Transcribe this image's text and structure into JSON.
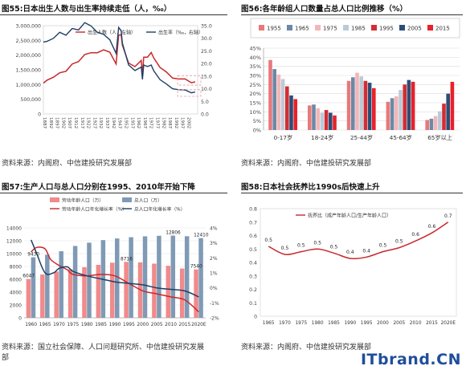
{
  "watermark": {
    "it": "IT",
    "rest": "brand.CN"
  },
  "panels": [
    {
      "title_num": "图55:",
      "title_text": "日本出生人数与出生率持续走低（人，‰）",
      "source": "资料来源：内阁府、中信建投研究发展部",
      "chart_data": {
        "type": "line",
        "legend": [
          "出生人数（人，左轴）",
          "出生率（‰，右轴）"
        ],
        "x_ticks": [
          "1887",
          "1892",
          "1897",
          "1902",
          "1907",
          "1912",
          "1917",
          "1922",
          "1927",
          "1932",
          "1937",
          "1942",
          "1947",
          "1952",
          "1957",
          "1962",
          "1967",
          "1972",
          "1977",
          "1982",
          "1987",
          "1992",
          "1997",
          "2002"
        ],
        "yleft_ticks": [
          "0",
          "500,000",
          "1,000,000",
          "1,500,000",
          "2,000,000",
          "2,500,000",
          "3,000,000"
        ],
        "yleft_lim": [
          0,
          3000000
        ],
        "yright_ticks": [
          "0.0",
          "5.0",
          "10.0",
          "15.0",
          "20.0",
          "25.0",
          "30.0",
          "35.0"
        ],
        "yright_lim": [
          0,
          35
        ],
        "series": [
          {
            "name": "出生人数（人，左轴）",
            "color": "#c8282d",
            "x": [
              1887,
              1890,
              1895,
              1900,
              1905,
              1910,
              1915,
              1920,
              1925,
              1930,
              1935,
              1940,
              1945,
              1947,
              1949,
              1950,
              1955,
              1960,
              1965,
              1966,
              1967,
              1970,
              1973,
              1975,
              1980,
              1985,
              1990,
              1995,
              2000,
              2005,
              2008
            ],
            "values": [
              1050000,
              1150000,
              1250000,
              1400000,
              1450000,
              1700000,
              1780000,
              2020000,
              2080000,
              2080000,
              2180000,
              2100000,
              1700000,
              2680000,
              2690000,
              2340000,
              1730000,
              1610000,
              1820000,
              1360000,
              1930000,
              1930000,
              2090000,
              1900000,
              1580000,
              1430000,
              1220000,
              1190000,
              1190000,
              1060000,
              1090000
            ]
          },
          {
            "name": "出生率（‰，右轴）",
            "color": "#1e3f66",
            "x": [
              1887,
              1890,
              1895,
              1900,
              1905,
              1910,
              1915,
              1920,
              1925,
              1930,
              1935,
              1940,
              1945,
              1947,
              1949,
              1950,
              1955,
              1960,
              1965,
              1966,
              1967,
              1970,
              1973,
              1975,
              1980,
              1985,
              1990,
              1995,
              2000,
              2005,
              2008
            ],
            "values": [
              28.5,
              28.8,
              30.0,
              32.4,
              31.2,
              33.9,
              33.3,
              36.2,
              34.9,
              32.4,
              31.6,
              29.4,
              24.0,
              34.3,
              33.0,
              28.1,
              19.4,
              17.2,
              18.6,
              13.7,
              19.4,
              18.8,
              19.4,
              17.1,
              13.6,
              11.9,
              10.0,
              9.6,
              9.5,
              8.4,
              8.7
            ]
          }
        ]
      }
    },
    {
      "title_num": "图56:",
      "title_text": "各年龄组人口数量占总人口比例推移（%）",
      "source": "资料来源：内阁府、中信建投研究发展部",
      "chart_data": {
        "type": "bar",
        "categories": [
          "0-17岁",
          "18-24岁",
          "25-44岁",
          "45-64岁",
          "65岁以上"
        ],
        "y_ticks": [
          "0%",
          "5%",
          "10%",
          "15%",
          "20%",
          "25%",
          "30%",
          "35%",
          "40%",
          "45%"
        ],
        "ylim": [
          0,
          45
        ],
        "series": [
          {
            "name": "1955",
            "color": "#e7797a",
            "values": [
              38.5,
              13.5,
              27.0,
              15.5,
              5.5
            ]
          },
          {
            "name": "1965",
            "color": "#6c88a8",
            "values": [
              33.5,
              14.0,
              29.0,
              17.5,
              6.2
            ]
          },
          {
            "name": "1975",
            "color": "#f2b7b8",
            "values": [
              30.5,
              12.0,
              31.5,
              18.5,
              7.7
            ]
          },
          {
            "name": "1985",
            "color": "#bccad8",
            "values": [
              28.0,
              9.5,
              29.5,
              22.0,
              10.3
            ]
          },
          {
            "name": "1995",
            "color": "#d32d33",
            "values": [
              24.0,
              11.0,
              27.0,
              25.0,
              14.5
            ]
          },
          {
            "name": "2005",
            "color": "#2c4d76",
            "values": [
              19.0,
              9.5,
              26.0,
              27.5,
              20.0
            ]
          },
          {
            "name": "2015",
            "color": "#e8212b",
            "values": [
              17.0,
              8.0,
              23.0,
              26.5,
              26.5
            ]
          }
        ]
      }
    },
    {
      "title_num": "图57:",
      "title_text": "生产人口与总人口分别在1995、2010年开始下降",
      "source_lines": [
        "资料来源：国立社会保障、人口问题研究所、中信建投研究发展",
        "部"
      ],
      "chart_data": {
        "type": "bar",
        "categories": [
          "1960",
          "1965",
          "1970",
          "1975",
          "1980",
          "1985",
          "1990",
          "1995",
          "2000",
          "2005",
          "2010",
          "2015",
          "2020E"
        ],
        "legend": [
          "劳动年龄人口（万）",
          "总人口（万）",
          "劳动年龄人口年化增长率（%）",
          "总人口年化增长率（%）"
        ],
        "yleft_ticks": [
          "0",
          "2000",
          "4000",
          "6000",
          "8000",
          "10000",
          "12000",
          "14000"
        ],
        "yleft_lim": [
          0,
          14000
        ],
        "yright_ticks": [
          "-2%",
          "-1%",
          "0%",
          "1%",
          "2%",
          "3%",
          "4%"
        ],
        "yright_lim": [
          -2,
          4
        ],
        "bars": [
          {
            "name": "劳动年龄人口（万）",
            "color": "#f08a8b",
            "values": [
              6047,
              6744,
              7212,
              7581,
              7883,
              8251,
              8590,
              8716,
              8638,
              8442,
              8103,
              7682,
              7540
            ]
          },
          {
            "name": "总人口（万）",
            "color": "#7f9ab5",
            "values": [
              9430,
              9828,
              10372,
              11194,
              11706,
              12105,
              12361,
              12557,
              12693,
              12777,
              12806,
              12710,
              12410
            ]
          }
        ],
        "lines": [
          {
            "name": "劳动年龄人口年化增长率（%）",
            "color": "#c8282d",
            "x": [
              1960,
              1962,
              1965,
              1967,
              1970,
              1973,
              1975,
              1980,
              1985,
              1990,
              1995,
              2000,
              2005,
              2010,
              2015,
              2020
            ],
            "values": [
              2.4,
              2.7,
              2.6,
              1.9,
              1.5,
              1.2,
              0.9,
              0.8,
              0.9,
              0.8,
              0.3,
              -0.2,
              -0.4,
              -0.6,
              -0.8,
              -1.6
            ]
          },
          {
            "name": "总人口年化增长率（%）",
            "color": "#1e3f66",
            "x": [
              1960,
              1962,
              1965,
              1968,
              1970,
              1973,
              1975,
              1980,
              1985,
              1990,
              1995,
              2000,
              2005,
              2010,
              2015,
              2020
            ],
            "values": [
              3.2,
              2.3,
              1.0,
              1.0,
              1.3,
              1.4,
              1.1,
              0.8,
              0.6,
              0.4,
              0.3,
              0.2,
              0.0,
              -0.1,
              -0.2,
              -0.6
            ]
          }
        ],
        "labels": [
          {
            "text": "9430",
            "x": "1960",
            "series": "总人口（万）"
          },
          {
            "text": "6047",
            "x": "1960",
            "series": "劳动年龄人口（万）"
          },
          {
            "text": "8716",
            "x": "1995",
            "series": "劳动年龄人口（万）"
          },
          {
            "text": "12806",
            "x": "2010",
            "series": "总人口（万）"
          },
          {
            "text": "12410",
            "x": "2020E",
            "series": "总人口（万）"
          },
          {
            "text": "7540",
            "x": "2020E",
            "series": "劳动年龄人口（万）"
          }
        ]
      }
    },
    {
      "title_num": "图58:",
      "title_text": "日本社会抚养比1990s后快速上升",
      "source": "资料来源：内阁府、中信建投研究发展部",
      "chart_data": {
        "type": "line",
        "legend": [
          "抚养比（成产年龄人口/生产年龄人口）"
        ],
        "categories": [
          "1965",
          "1970",
          "1975",
          "1980",
          "1985",
          "1990",
          "1995",
          "2000",
          "2005",
          "2010",
          "2015",
          "2020E"
        ],
        "y_ticks": [
          "0",
          "0.1",
          "0.2",
          "0.3",
          "0.4",
          "0.5",
          "0.6",
          "0.7",
          "0.8"
        ],
        "ylim": [
          0,
          0.8
        ],
        "series": [
          {
            "name": "抚养比（成产年龄人口/生产年龄人口）",
            "color": "#c8282d",
            "values": [
              0.52,
              0.46,
              0.48,
              0.5,
              0.47,
              0.43,
              0.44,
              0.48,
              0.51,
              0.56,
              0.62,
              0.7
            ]
          }
        ],
        "labels": [
          {
            "text": "0.5",
            "x": "1965"
          },
          {
            "text": "0.5",
            "x": "1970"
          },
          {
            "text": "0.5",
            "x": "1975"
          },
          {
            "text": "0.5",
            "x": "1980"
          },
          {
            "text": "0.5",
            "x": "1985"
          },
          {
            "text": "0.4",
            "x": "1990"
          },
          {
            "text": "0.4",
            "x": "1995"
          },
          {
            "text": "0.5",
            "x": "2000"
          },
          {
            "text": "0.5",
            "x": "2005"
          },
          {
            "text": "0.6",
            "x": "2010"
          },
          {
            "text": "0.6",
            "x": "2015"
          },
          {
            "text": "0.7",
            "x": "2020E"
          }
        ]
      }
    }
  ]
}
